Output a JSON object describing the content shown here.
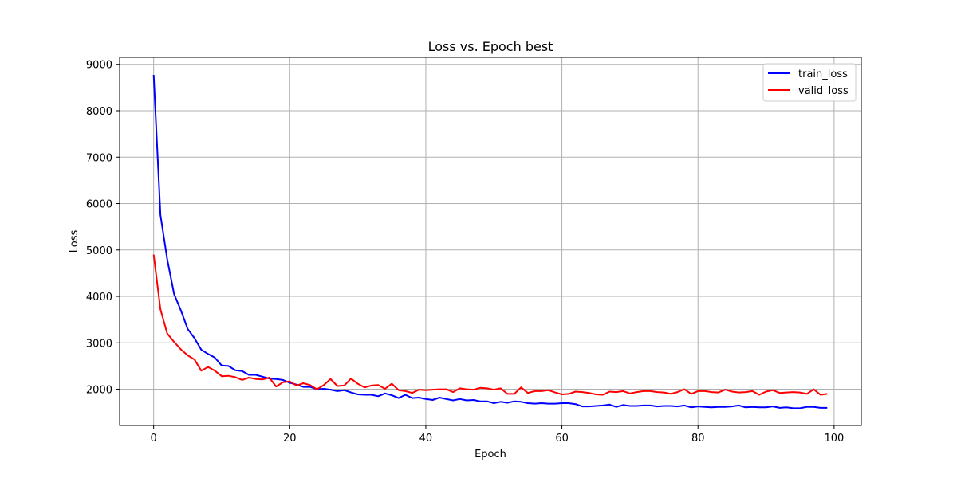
{
  "chart_data": {
    "type": "line",
    "title": "Loss vs. Epoch best",
    "xlabel": "Epoch",
    "ylabel": "Loss",
    "xlim": [
      -5,
      104
    ],
    "ylim": [
      1220,
      9150
    ],
    "xticks": [
      0,
      20,
      40,
      60,
      80,
      100
    ],
    "yticks": [
      2000,
      3000,
      4000,
      5000,
      6000,
      7000,
      8000,
      9000
    ],
    "grid": true,
    "legend_position": "top-right",
    "x": [
      0,
      1,
      2,
      3,
      4,
      5,
      6,
      7,
      8,
      9,
      10,
      11,
      12,
      13,
      14,
      15,
      16,
      17,
      18,
      19,
      20,
      21,
      22,
      23,
      24,
      25,
      26,
      27,
      28,
      29,
      30,
      31,
      32,
      33,
      34,
      35,
      36,
      37,
      38,
      39,
      40,
      41,
      42,
      43,
      44,
      45,
      46,
      47,
      48,
      49,
      50,
      51,
      52,
      53,
      54,
      55,
      56,
      57,
      58,
      59,
      60,
      61,
      62,
      63,
      64,
      65,
      66,
      67,
      68,
      69,
      70,
      71,
      72,
      73,
      74,
      75,
      76,
      77,
      78,
      79,
      80,
      81,
      82,
      83,
      84,
      85,
      86,
      87,
      88,
      89,
      90,
      91,
      92,
      93,
      94,
      95,
      96,
      97,
      98,
      99
    ],
    "series": [
      {
        "name": "train_loss",
        "color": "#0000ff",
        "values": [
          8770,
          5750,
          4800,
          4050,
          3700,
          3300,
          3100,
          2850,
          2760,
          2680,
          2510,
          2500,
          2410,
          2390,
          2310,
          2310,
          2270,
          2230,
          2220,
          2200,
          2140,
          2100,
          2050,
          2050,
          2000,
          2010,
          1990,
          1960,
          1980,
          1930,
          1890,
          1880,
          1880,
          1850,
          1910,
          1870,
          1810,
          1880,
          1810,
          1820,
          1790,
          1770,
          1820,
          1790,
          1760,
          1790,
          1760,
          1770,
          1740,
          1740,
          1700,
          1730,
          1710,
          1740,
          1730,
          1700,
          1690,
          1700,
          1690,
          1690,
          1700,
          1700,
          1680,
          1630,
          1630,
          1640,
          1650,
          1670,
          1620,
          1660,
          1640,
          1640,
          1650,
          1650,
          1630,
          1640,
          1640,
          1630,
          1650,
          1610,
          1630,
          1620,
          1610,
          1620,
          1620,
          1630,
          1650,
          1610,
          1620,
          1610,
          1610,
          1630,
          1600,
          1610,
          1590,
          1590,
          1620,
          1620,
          1600,
          1600
        ]
      },
      {
        "name": "valid_loss",
        "color": "#ff0000",
        "values": [
          4900,
          3720,
          3200,
          3020,
          2860,
          2730,
          2640,
          2400,
          2480,
          2400,
          2280,
          2290,
          2260,
          2200,
          2250,
          2220,
          2210,
          2250,
          2060,
          2150,
          2170,
          2080,
          2130,
          2090,
          2000,
          2090,
          2220,
          2070,
          2080,
          2230,
          2120,
          2040,
          2080,
          2090,
          2010,
          2120,
          1980,
          1960,
          1920,
          1990,
          1980,
          1990,
          2000,
          2000,
          1940,
          2020,
          2000,
          1990,
          2030,
          2020,
          1990,
          2020,
          1900,
          1900,
          2040,
          1920,
          1960,
          1960,
          1980,
          1930,
          1890,
          1900,
          1950,
          1940,
          1920,
          1890,
          1880,
          1950,
          1940,
          1960,
          1910,
          1940,
          1960,
          1960,
          1940,
          1930,
          1900,
          1940,
          2000,
          1900,
          1960,
          1960,
          1940,
          1930,
          1990,
          1950,
          1930,
          1940,
          1960,
          1880,
          1950,
          1980,
          1920,
          1930,
          1940,
          1930,
          1900,
          2000,
          1880,
          1900
        ]
      }
    ]
  }
}
